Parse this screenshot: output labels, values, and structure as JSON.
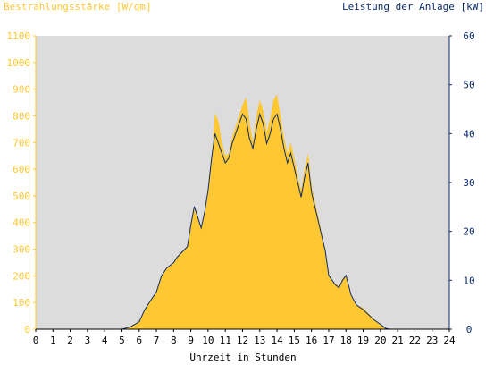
{
  "chart_data": {
    "type": "area",
    "left_axis_label": "Bestrahlungsstärke [W/qm]",
    "right_axis_label": "Leistung der Anlage [kW]",
    "xlabel": "Uhrzeit in Stunden",
    "xlim": [
      0,
      24
    ],
    "ylim_left": [
      0,
      1100
    ],
    "ylim_right": [
      0,
      60
    ],
    "x_ticks": [
      "0",
      "1",
      "2",
      "3",
      "4",
      "5",
      "6",
      "7",
      "8",
      "9",
      "10",
      "11",
      "12",
      "13",
      "14",
      "15",
      "16",
      "17",
      "18",
      "19",
      "20",
      "21",
      "22",
      "23",
      "24"
    ],
    "y_ticks_left": [
      "0",
      "100",
      "200",
      "300",
      "400",
      "500",
      "600",
      "700",
      "800",
      "900",
      "1000",
      "1100"
    ],
    "y_ticks_right": [
      "0",
      "10",
      "20",
      "30",
      "40",
      "50",
      "60"
    ],
    "colors": {
      "irradiance": "#ffc832",
      "power": "#0c2a6a",
      "plot_bg": "#dcdcdc"
    },
    "series": [
      {
        "name": "Bestrahlungsstärke [W/qm]",
        "axis": "left",
        "x": [
          0,
          5,
          5.5,
          6,
          6.3,
          6.6,
          7,
          7.3,
          7.6,
          8,
          8.2,
          8.5,
          8.8,
          9,
          9.2,
          9.4,
          9.6,
          9.8,
          10,
          10.2,
          10.4,
          10.6,
          10.8,
          11,
          11.2,
          11.4,
          11.6,
          11.8,
          12,
          12.2,
          12.4,
          12.6,
          12.8,
          13,
          13.2,
          13.4,
          13.6,
          13.8,
          14,
          14.2,
          14.4,
          14.6,
          14.8,
          15,
          15.2,
          15.4,
          15.6,
          15.8,
          16,
          16.2,
          16.4,
          16.6,
          16.8,
          17,
          17.2,
          17.4,
          17.6,
          17.8,
          18,
          18.3,
          18.6,
          19,
          19.3,
          19.6,
          20,
          20.3,
          20.5,
          24
        ],
        "values": [
          0,
          0,
          10,
          30,
          70,
          100,
          140,
          200,
          230,
          250,
          270,
          290,
          310,
          390,
          460,
          420,
          380,
          440,
          520,
          640,
          810,
          780,
          700,
          650,
          660,
          720,
          760,
          800,
          840,
          870,
          780,
          700,
          800,
          860,
          820,
          740,
          790,
          860,
          880,
          800,
          720,
          660,
          700,
          640,
          580,
          520,
          600,
          660,
          540,
          480,
          420,
          360,
          300,
          200,
          180,
          170,
          160,
          190,
          200,
          130,
          90,
          80,
          60,
          40,
          20,
          5,
          0,
          0
        ]
      },
      {
        "name": "Leistung der Anlage [kW]",
        "axis": "right",
        "x": [
          0,
          5,
          5.5,
          6,
          6.3,
          6.6,
          7,
          7.3,
          7.6,
          8,
          8.2,
          8.5,
          8.8,
          9,
          9.2,
          9.4,
          9.6,
          9.8,
          10,
          10.2,
          10.4,
          10.6,
          10.8,
          11,
          11.2,
          11.4,
          11.6,
          11.8,
          12,
          12.2,
          12.4,
          12.6,
          12.8,
          13,
          13.2,
          13.4,
          13.6,
          13.8,
          14,
          14.2,
          14.4,
          14.6,
          14.8,
          15,
          15.2,
          15.4,
          15.6,
          15.8,
          16,
          16.2,
          16.4,
          16.6,
          16.8,
          17,
          17.2,
          17.4,
          17.6,
          17.8,
          18,
          18.3,
          18.6,
          19,
          19.3,
          19.6,
          20,
          20.3,
          20.5,
          24
        ],
        "values": [
          0,
          0,
          0.5,
          1.5,
          3.8,
          5.5,
          7.6,
          10.9,
          12.5,
          13.6,
          14.7,
          15.8,
          16.9,
          21.3,
          25.1,
          22.9,
          20.7,
          24,
          28.4,
          34.9,
          40,
          38,
          36,
          34,
          35,
          38,
          40,
          42,
          44,
          43,
          39,
          37,
          41,
          44,
          42,
          38,
          40,
          43,
          44,
          41,
          37,
          34,
          36,
          33,
          30,
          27,
          31,
          34,
          28,
          25,
          22,
          19,
          16,
          11,
          10,
          9,
          8.5,
          10,
          11,
          7,
          5,
          4,
          3,
          2,
          1,
          0.2,
          0,
          0
        ]
      }
    ]
  }
}
